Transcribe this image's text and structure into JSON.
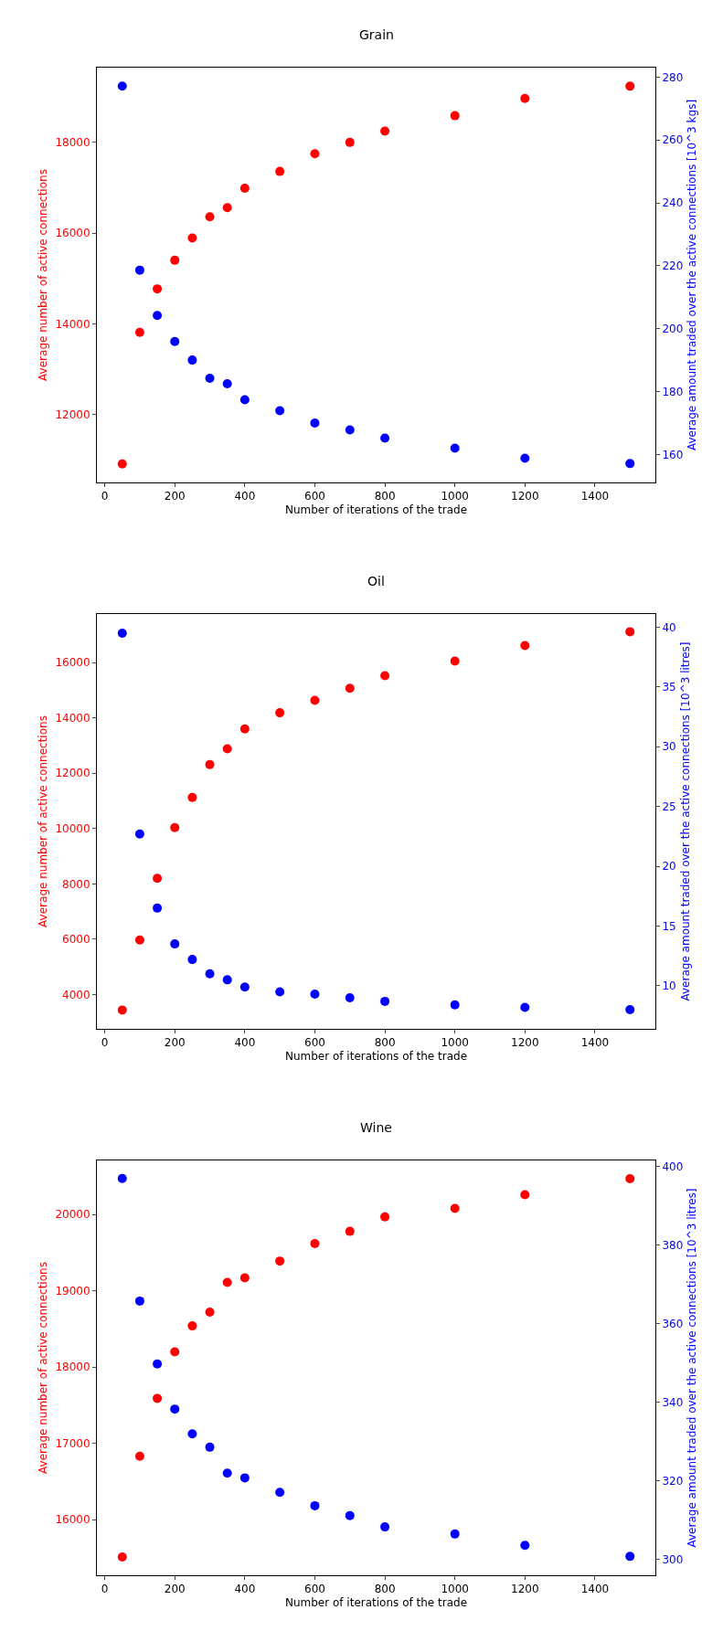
{
  "chart_data": [
    {
      "type": "scatter",
      "title": "Grain",
      "xlabel": "Number of iterations of the trade",
      "ylabel": "Average number of active connections",
      "y2label": "Average amount traded over the active connections [10^3 kgs]",
      "x": [
        50,
        100,
        150,
        200,
        250,
        300,
        350,
        400,
        500,
        600,
        700,
        800,
        1000,
        1200,
        1500
      ],
      "marker": "circle",
      "series": [
        {
          "color": "#ff0000",
          "values": [
            10910,
            13810,
            14770,
            15400,
            15890,
            16360,
            16560,
            16990,
            17360,
            17750,
            18000,
            18250,
            18590,
            18970,
            19240
          ]
        },
        {
          "color": "#0000ff",
          "axis": "y2",
          "values": [
            277.1,
            218.6,
            204.2,
            195.9,
            190.0,
            184.2,
            182.5,
            177.4,
            173.9,
            170.0,
            167.8,
            165.2,
            162.0,
            158.8,
            157.1
          ]
        }
      ],
      "xlim": [
        -22.5,
        1572.5
      ],
      "xticks": [
        0,
        200,
        400,
        600,
        800,
        1000,
        1200,
        1400
      ],
      "ylim": [
        10500,
        19650
      ],
      "yticks": [
        12000,
        14000,
        16000,
        18000
      ],
      "y2lim": [
        151.1,
        283.0
      ],
      "y2ticks": [
        160,
        180,
        200,
        220,
        240,
        260,
        280
      ]
    },
    {
      "type": "scatter",
      "title": "Oil",
      "xlabel": "Number of iterations of the trade",
      "ylabel": "Average number of active connections",
      "y2label": "Average amount traded over the active connections [10^3 litres]",
      "x": [
        50,
        100,
        150,
        200,
        250,
        300,
        350,
        400,
        500,
        600,
        700,
        800,
        1000,
        1200,
        1500
      ],
      "marker": "circle",
      "series": [
        {
          "color": "#ff0000",
          "values": [
            3440,
            5970,
            8200,
            10030,
            11120,
            12310,
            12880,
            13600,
            14180,
            14630,
            15070,
            15520,
            16050,
            16610,
            17110
          ]
        },
        {
          "color": "#0000ff",
          "axis": "y2",
          "values": [
            39.5,
            22.7,
            16.5,
            13.5,
            12.2,
            11.0,
            10.5,
            9.9,
            9.5,
            9.3,
            9.0,
            8.7,
            8.4,
            8.2,
            8.0
          ]
        }
      ],
      "xlim": [
        -22.5,
        1572.5
      ],
      "xticks": [
        0,
        200,
        400,
        600,
        800,
        1000,
        1200,
        1400
      ],
      "ylim": [
        2760,
        17750
      ],
      "yticks": [
        4000,
        6000,
        8000,
        10000,
        12000,
        14000,
        16000
      ],
      "y2lim": [
        6.4,
        41.1
      ],
      "y2ticks": [
        10,
        15,
        20,
        25,
        30,
        35,
        40
      ]
    },
    {
      "type": "scatter",
      "title": "Wine",
      "xlabel": "Number of iterations of the trade",
      "ylabel": "Average number of active connections",
      "y2label": "Average amount traded over the active connections [10^3 litres]",
      "x": [
        50,
        100,
        150,
        200,
        250,
        300,
        350,
        400,
        500,
        600,
        700,
        800,
        1000,
        1200,
        1500
      ],
      "marker": "circle",
      "series": [
        {
          "color": "#ff0000",
          "values": [
            15510,
            16830,
            17590,
            18200,
            18540,
            18720,
            19110,
            19170,
            19390,
            19620,
            19780,
            19970,
            20080,
            20260,
            20470
          ]
        },
        {
          "color": "#0000ff",
          "axis": "y2",
          "values": [
            397.0,
            365.8,
            349.8,
            338.3,
            332.0,
            328.6,
            322.0,
            320.8,
            317.1,
            313.7,
            311.2,
            308.3,
            306.5,
            303.6,
            300.8
          ]
        }
      ],
      "xlim": [
        -22.5,
        1572.5
      ],
      "xticks": [
        0,
        200,
        400,
        600,
        800,
        1000,
        1200,
        1400
      ],
      "ylim": [
        15270,
        20710
      ],
      "yticks": [
        16000,
        17000,
        18000,
        19000,
        20000
      ],
      "y2lim": [
        296.0,
        401.6
      ],
      "y2ticks": [
        300,
        320,
        340,
        360,
        380,
        400
      ]
    }
  ]
}
